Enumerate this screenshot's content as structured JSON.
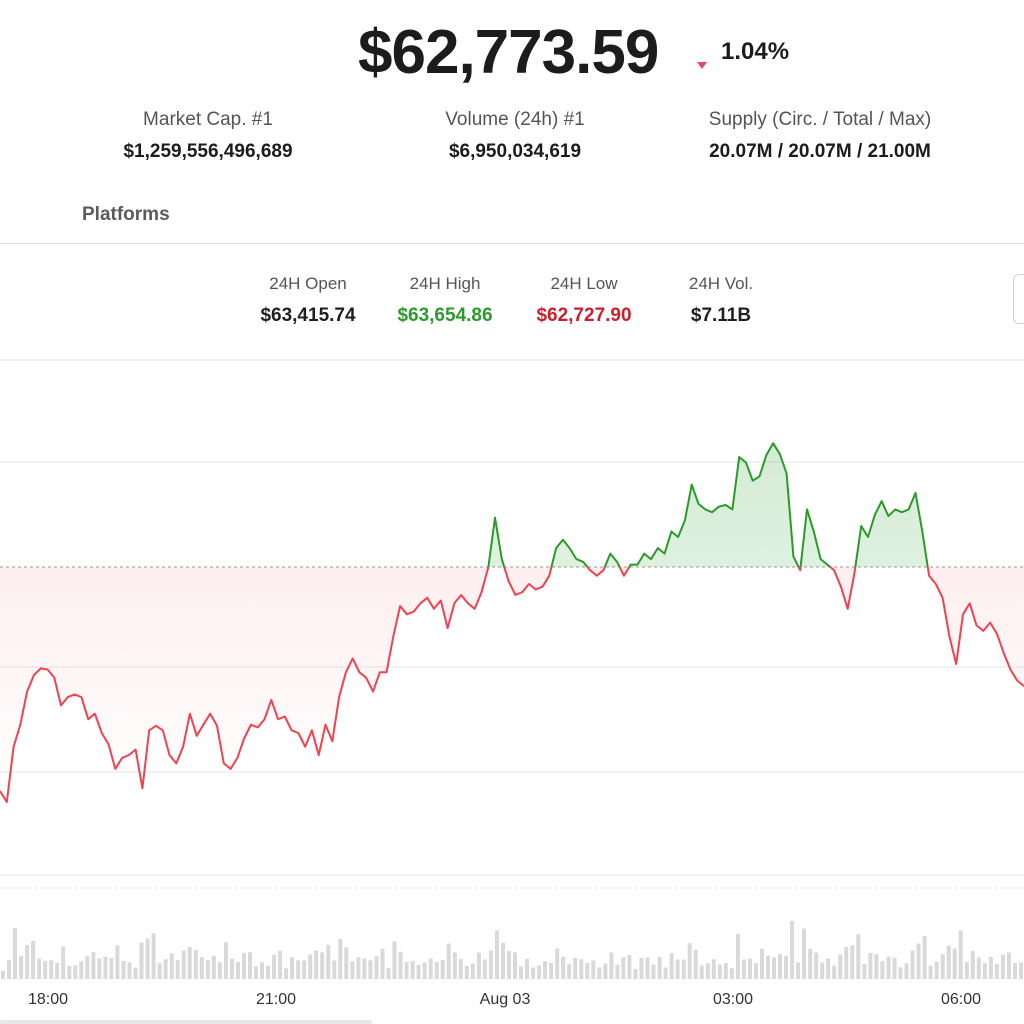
{
  "header": {
    "price": "$62,773.59",
    "change": "1.04%",
    "change_direction_icon": "triangle-down-icon"
  },
  "stats": [
    {
      "label": "Market Cap. #1",
      "value": "$1,259,556,496,689"
    },
    {
      "label": "Volume (24h) #1",
      "value": "$6,950,034,619"
    },
    {
      "label": "Supply (Circ. / Total / Max)",
      "value": "20.07M / 20.07M / 21.00M"
    }
  ],
  "tabs": {
    "platforms": "Platforms"
  },
  "ohlc": {
    "open": {
      "label": "24H Open",
      "value": "$63,415.74"
    },
    "high": {
      "label": "24H High",
      "value": "$63,654.86"
    },
    "low": {
      "label": "24H Low",
      "value": "$62,727.90"
    },
    "vol": {
      "label": "24H Vol.",
      "value": "$7.11B"
    }
  },
  "colors": {
    "up": "#2a9b2a",
    "down": "#f0424f",
    "grid": "#e6e6e6",
    "volume": "#d9d9d9"
  },
  "chart_data": {
    "type": "line",
    "xlabels": [
      "18:00",
      "21:00",
      "Aug 03",
      "03:00",
      "06:00"
    ],
    "baseline": 63415.74,
    "prices": [
      63010,
      62990,
      63090,
      63130,
      63190,
      63220,
      63232,
      63230,
      63215,
      63165,
      63180,
      63185,
      63180,
      63140,
      63150,
      63115,
      63095,
      63050,
      63070,
      63075,
      63085,
      63015,
      63120,
      63128,
      63120,
      63075,
      63060,
      63090,
      63150,
      63110,
      63130,
      63150,
      63128,
      63060,
      63050,
      63070,
      63105,
      63130,
      63125,
      63140,
      63175,
      63140,
      63145,
      63120,
      63115,
      63090,
      63120,
      63075,
      63130,
      63100,
      63180,
      63225,
      63250,
      63225,
      63215,
      63190,
      63225,
      63225,
      63290,
      63345,
      63330,
      63335,
      63350,
      63360,
      63340,
      63355,
      63305,
      63350,
      63365,
      63350,
      63340,
      63370,
      63415,
      63505,
      63430,
      63390,
      63365,
      63370,
      63385,
      63375,
      63380,
      63400,
      63450,
      63465,
      63450,
      63430,
      63425,
      63410,
      63400,
      63410,
      63440,
      63425,
      63400,
      63420,
      63420,
      63440,
      63430,
      63450,
      63440,
      63480,
      63470,
      63500,
      63565,
      63530,
      63520,
      63515,
      63525,
      63528,
      63520,
      63615,
      63605,
      63572,
      63580,
      63618,
      63640,
      63620,
      63585,
      63435,
      63410,
      63520,
      63480,
      63430,
      63420,
      63410,
      63380,
      63340,
      63405,
      63490,
      63470,
      63510,
      63535,
      63508,
      63520,
      63515,
      63520,
      63550,
      63480,
      63400,
      63385,
      63360,
      63290,
      63240,
      63330,
      63350,
      63310,
      63300,
      63315,
      63295,
      63260,
      63230,
      63210,
      63200
    ]
  }
}
